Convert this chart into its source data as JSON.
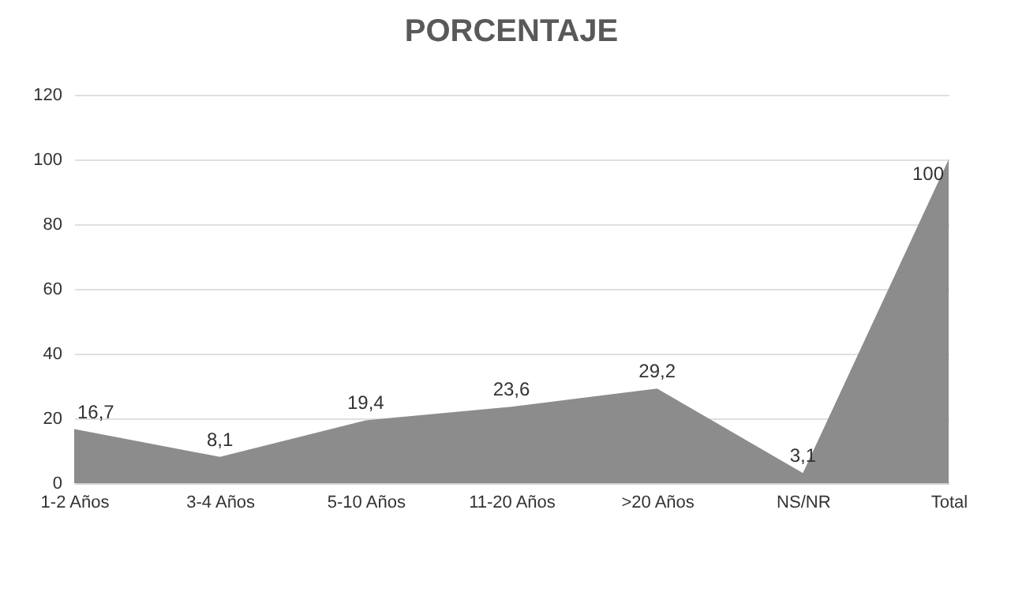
{
  "chart_data": {
    "type": "area",
    "title": "PORCENTAJE",
    "categories": [
      "1-2 Años",
      "3-4 Años",
      "5-10 Años",
      "11-20 Años",
      ">20 Años",
      "NS/NR",
      "Total"
    ],
    "values": [
      16.7,
      8.1,
      19.4,
      23.6,
      29.2,
      3.1,
      100
    ],
    "value_labels": [
      "16,7",
      "8,1",
      "19,4",
      "23,6",
      "29,2",
      "3,1",
      "100"
    ],
    "color": "#8c8c8c",
    "ylim": [
      0,
      120
    ],
    "yticks": [
      0,
      20,
      40,
      60,
      80,
      100,
      120
    ],
    "grid": "y"
  }
}
